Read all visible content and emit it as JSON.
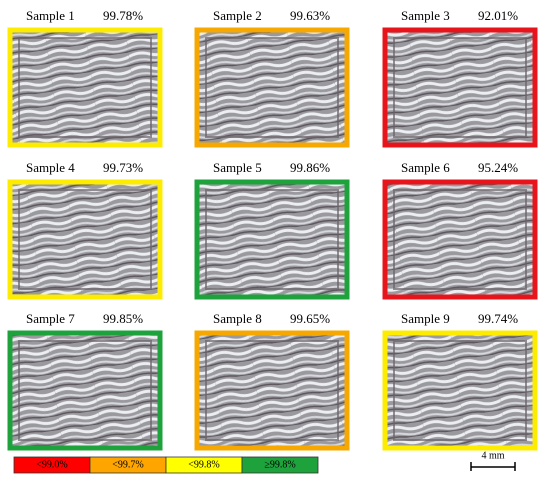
{
  "samples": [
    {
      "name": "Sample 1",
      "density": "99.78%",
      "color": "#fdec00"
    },
    {
      "name": "Sample 2",
      "density": "99.63%",
      "color": "#f7a800"
    },
    {
      "name": "Sample 3",
      "density": "92.01%",
      "color": "#e8141b"
    },
    {
      "name": "Sample 4",
      "density": "99.73%",
      "color": "#fdec00"
    },
    {
      "name": "Sample 5",
      "density": "99.86%",
      "color": "#1ea33c"
    },
    {
      "name": "Sample 6",
      "density": "95.24%",
      "color": "#e8141b"
    },
    {
      "name": "Sample 7",
      "density": "99.85%",
      "color": "#1ea33c"
    },
    {
      "name": "Sample 8",
      "density": "99.65%",
      "color": "#f7a800"
    },
    {
      "name": "Sample 9",
      "density": "99.74%",
      "color": "#fdec00"
    }
  ],
  "legend": [
    {
      "label": "<99.0%",
      "color": "#ff0000"
    },
    {
      "label": "<99.7%",
      "color": "#ffa500"
    },
    {
      "label": "<99.8%",
      "color": "#ffff00"
    },
    {
      "label": "≥99.8%",
      "color": "#1ea33c"
    }
  ],
  "scale_bar": "4 mm"
}
